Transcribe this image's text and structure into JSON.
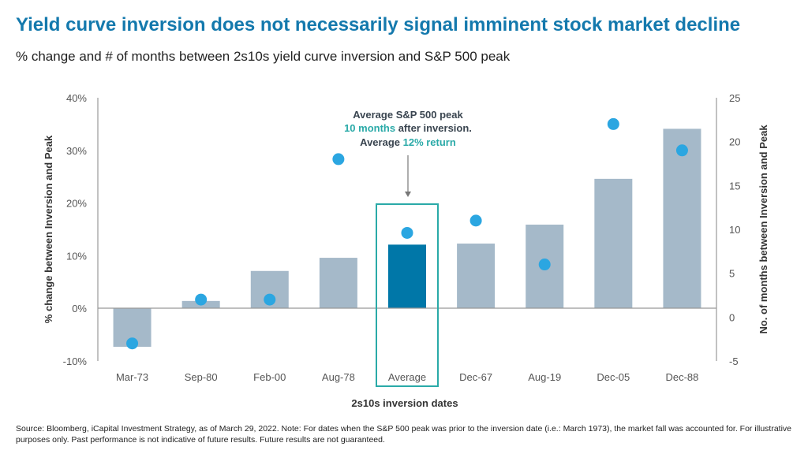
{
  "title": "Yield curve inversion does not necessarily signal imminent stock market decline",
  "subtitle": "% change and # of months between 2s10s yield curve inversion and S&P 500 peak",
  "footer": "Source: Bloomberg, iCapital Investment Strategy, as of March 29, 2022. Note: For dates when the S&P 500 peak was prior to the inversion date (i.e.: March 1973), the market fall was accounted for. For illustrative purposes only. Past performance is not indicative of future results. Future results are not guaranteed.",
  "annotation": {
    "line1": "Average S&P 500 peak",
    "line2_highlight": "10 months",
    "line2_rest": " after inversion.",
    "line3_start": "Average ",
    "line3_highlight": "12% return"
  },
  "colors": {
    "bar": "#a5b9c9",
    "highlight_bar": "#0077a8",
    "dot": "#2ba6e1",
    "accent": "#2aaaa8",
    "title": "#1479ad"
  },
  "chart_data": {
    "type": "bar",
    "xlabel": "2s10s inversion dates",
    "ylabel": "% change between Inversion and Peak",
    "y2label": "No. of months between Inversion and Peak",
    "categories": [
      "Mar-73",
      "Sep-80",
      "Feb-00",
      "Aug-78",
      "Average",
      "Dec-67",
      "Aug-19",
      "Dec-05",
      "Dec-88"
    ],
    "ylim": [
      -10,
      40
    ],
    "yticks": [
      "-10%",
      "0%",
      "10%",
      "20%",
      "30%",
      "40%"
    ],
    "y2lim": [
      -5,
      25
    ],
    "y2ticks": [
      "-5",
      "0",
      "5",
      "10",
      "15",
      "20",
      "25"
    ],
    "highlight_category": "Average",
    "series": [
      {
        "type": "bar",
        "axis": "left",
        "values": [
          -7.3,
          1.4,
          7.1,
          9.6,
          12.1,
          12.3,
          15.9,
          24.6,
          34.1
        ]
      },
      {
        "type": "scatter",
        "axis": "right",
        "values": [
          -3,
          2,
          2,
          18,
          9.6,
          11,
          6,
          22,
          19
        ]
      }
    ],
    "grid": false
  }
}
